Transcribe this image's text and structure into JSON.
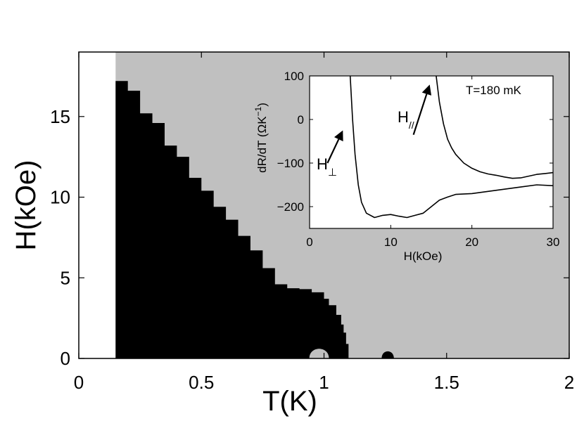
{
  "chart_data": [
    {
      "type": "heatmap",
      "title": "",
      "xlabel": "T(K)",
      "ylabel": "H(kOe)",
      "xlim": [
        0,
        2
      ],
      "ylim": [
        0,
        19
      ],
      "xticks": [
        {
          "value": 0,
          "label": "0"
        },
        {
          "value": 0.5,
          "label": "0.5"
        },
        {
          "value": 1,
          "label": "1"
        },
        {
          "value": 1.5,
          "label": "1.5"
        },
        {
          "value": 2,
          "label": "2"
        }
      ],
      "yticks": [
        {
          "value": 0,
          "label": "0"
        },
        {
          "value": 5,
          "label": "5"
        },
        {
          "value": 10,
          "label": "10"
        },
        {
          "value": 15,
          "label": "15"
        }
      ],
      "colors": {
        "superconducting": "#000000",
        "normal": "#c0c0c0",
        "no_data": "#ffffff"
      },
      "data_start_T": 0.15,
      "phase_boundary": [
        [
          0.15,
          17.2
        ],
        [
          0.2,
          16.6
        ],
        [
          0.25,
          15.2
        ],
        [
          0.3,
          14.6
        ],
        [
          0.35,
          13.2
        ],
        [
          0.4,
          12.5
        ],
        [
          0.45,
          11.2
        ],
        [
          0.5,
          10.4
        ],
        [
          0.55,
          9.4
        ],
        [
          0.6,
          8.6
        ],
        [
          0.65,
          7.6
        ],
        [
          0.7,
          6.7
        ],
        [
          0.75,
          5.6
        ],
        [
          0.8,
          4.6
        ],
        [
          0.85,
          4.35
        ],
        [
          0.9,
          4.3
        ],
        [
          0.95,
          4.1
        ],
        [
          1.0,
          3.7
        ],
        [
          1.02,
          3.3
        ],
        [
          1.05,
          2.7
        ],
        [
          1.07,
          2.1
        ],
        [
          1.08,
          1.6
        ],
        [
          1.09,
          0.9
        ],
        [
          1.1,
          0.2
        ],
        [
          1.1,
          0
        ]
      ],
      "normal_pocket": {
        "T_min": 0.94,
        "T_max": 1.02,
        "H_max": 0.8
      },
      "reentrant_island": {
        "T_center": 1.26,
        "H_max": 0.45,
        "half_width": 0.025
      }
    },
    {
      "type": "line",
      "title": "",
      "xlabel": "H(kOe)",
      "ylabel": "dR/dT (ΩK",
      "ylabel_superscript": "−1",
      "ylabel_close": ")",
      "annotation": "T=180 mK",
      "xlim": [
        0,
        30
      ],
      "ylim": [
        -250,
        100
      ],
      "xticks": [
        {
          "value": 0,
          "label": "0"
        },
        {
          "value": 10,
          "label": "10"
        },
        {
          "value": 20,
          "label": "20"
        },
        {
          "value": 30,
          "label": "30"
        }
      ],
      "yticks": [
        {
          "value": 100,
          "label": "100"
        },
        {
          "value": 0,
          "label": "0"
        },
        {
          "value": -100,
          "label": "−100"
        },
        {
          "value": -200,
          "label": "−200"
        }
      ],
      "series": [
        {
          "name": "H_perp",
          "label_main": "H",
          "label_sub": "⊥",
          "x": [
            5.0,
            5.3,
            5.6,
            6.0,
            6.4,
            7.0,
            8.0,
            9.0,
            10.0,
            11.0,
            12.0,
            13.0,
            14.0,
            15.0,
            16.0,
            17.0,
            18.0,
            20.0,
            22.0,
            24.0,
            26.0,
            28.0,
            30.0
          ],
          "y": [
            100,
            0,
            -80,
            -150,
            -190,
            -215,
            -225,
            -220,
            -218,
            -222,
            -225,
            -220,
            -215,
            -200,
            -185,
            -178,
            -172,
            -170,
            -165,
            -160,
            -155,
            -150,
            -152
          ]
        },
        {
          "name": "H_par",
          "label_main": "H",
          "label_sub": "//",
          "x": [
            15.6,
            16.0,
            16.5,
            17.0,
            17.5,
            18.0,
            19.0,
            20.0,
            21.0,
            22.0,
            23.0,
            24.0,
            25.0,
            26.0,
            27.0,
            28.0,
            29.0,
            30.0
          ],
          "y": [
            100,
            40,
            -10,
            -45,
            -65,
            -80,
            -100,
            -112,
            -120,
            -125,
            -128,
            -132,
            -135,
            -134,
            -130,
            -126,
            -124,
            -122
          ]
        }
      ],
      "arrows": [
        {
          "label": "H_perp",
          "from": [
            2.2,
            -100
          ],
          "to": [
            4.1,
            -25
          ]
        },
        {
          "label": "H_par",
          "from": [
            12.8,
            -35
          ],
          "to": [
            14.8,
            80
          ]
        }
      ]
    }
  ]
}
